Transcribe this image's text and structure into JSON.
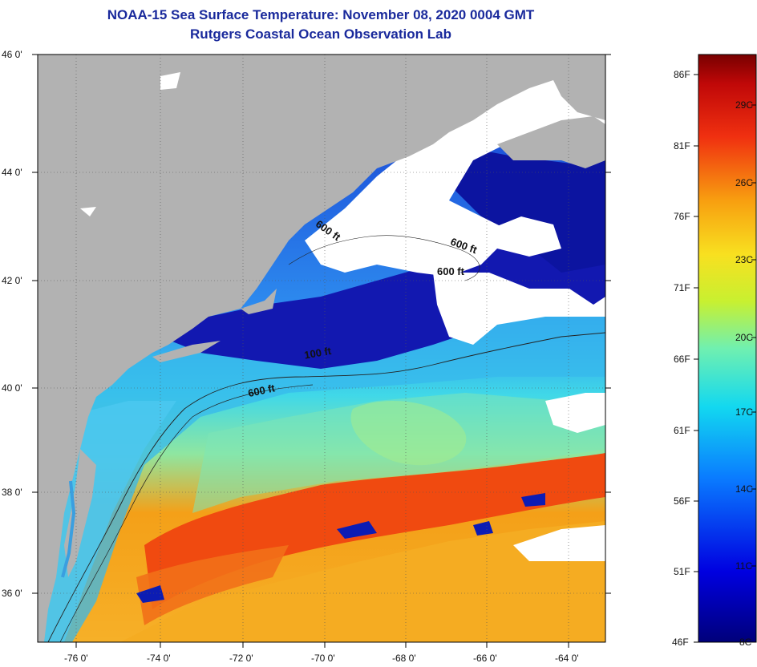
{
  "header": {
    "title": "NOAA-15 Sea Surface Temperature:  November 08, 2020 0004 GMT",
    "subtitle": "Rutgers Coastal Ocean Observation Lab"
  },
  "map": {
    "lat_labels": [
      "46 0'",
      "44 0'",
      "42 0'",
      "40 0'",
      "38 0'",
      "36 0'"
    ],
    "lon_labels": [
      "-76 0'",
      "-74 0'",
      "-72 0'",
      "-70 0'",
      "-68 0'",
      "-66 0'",
      "-64 0'"
    ],
    "isobath_labels": [
      "600 ft",
      "600 ft",
      "600 ft",
      "100 ft",
      "600 ft"
    ],
    "colors": {
      "land": "#b2b2b2",
      "cloud": "#ffffff",
      "cold": "#0a0a9c",
      "warm": "#f29a1a",
      "hot": "#f04a10"
    }
  },
  "colorbar": {
    "fahrenheit_labels": [
      "86F",
      "81F",
      "76F",
      "71F",
      "66F",
      "61F",
      "56F",
      "51F",
      "46F"
    ],
    "celsius_labels": [
      "29C",
      "26C",
      "23C",
      "20C",
      "17C",
      "14C",
      "11C",
      "8C"
    ]
  }
}
